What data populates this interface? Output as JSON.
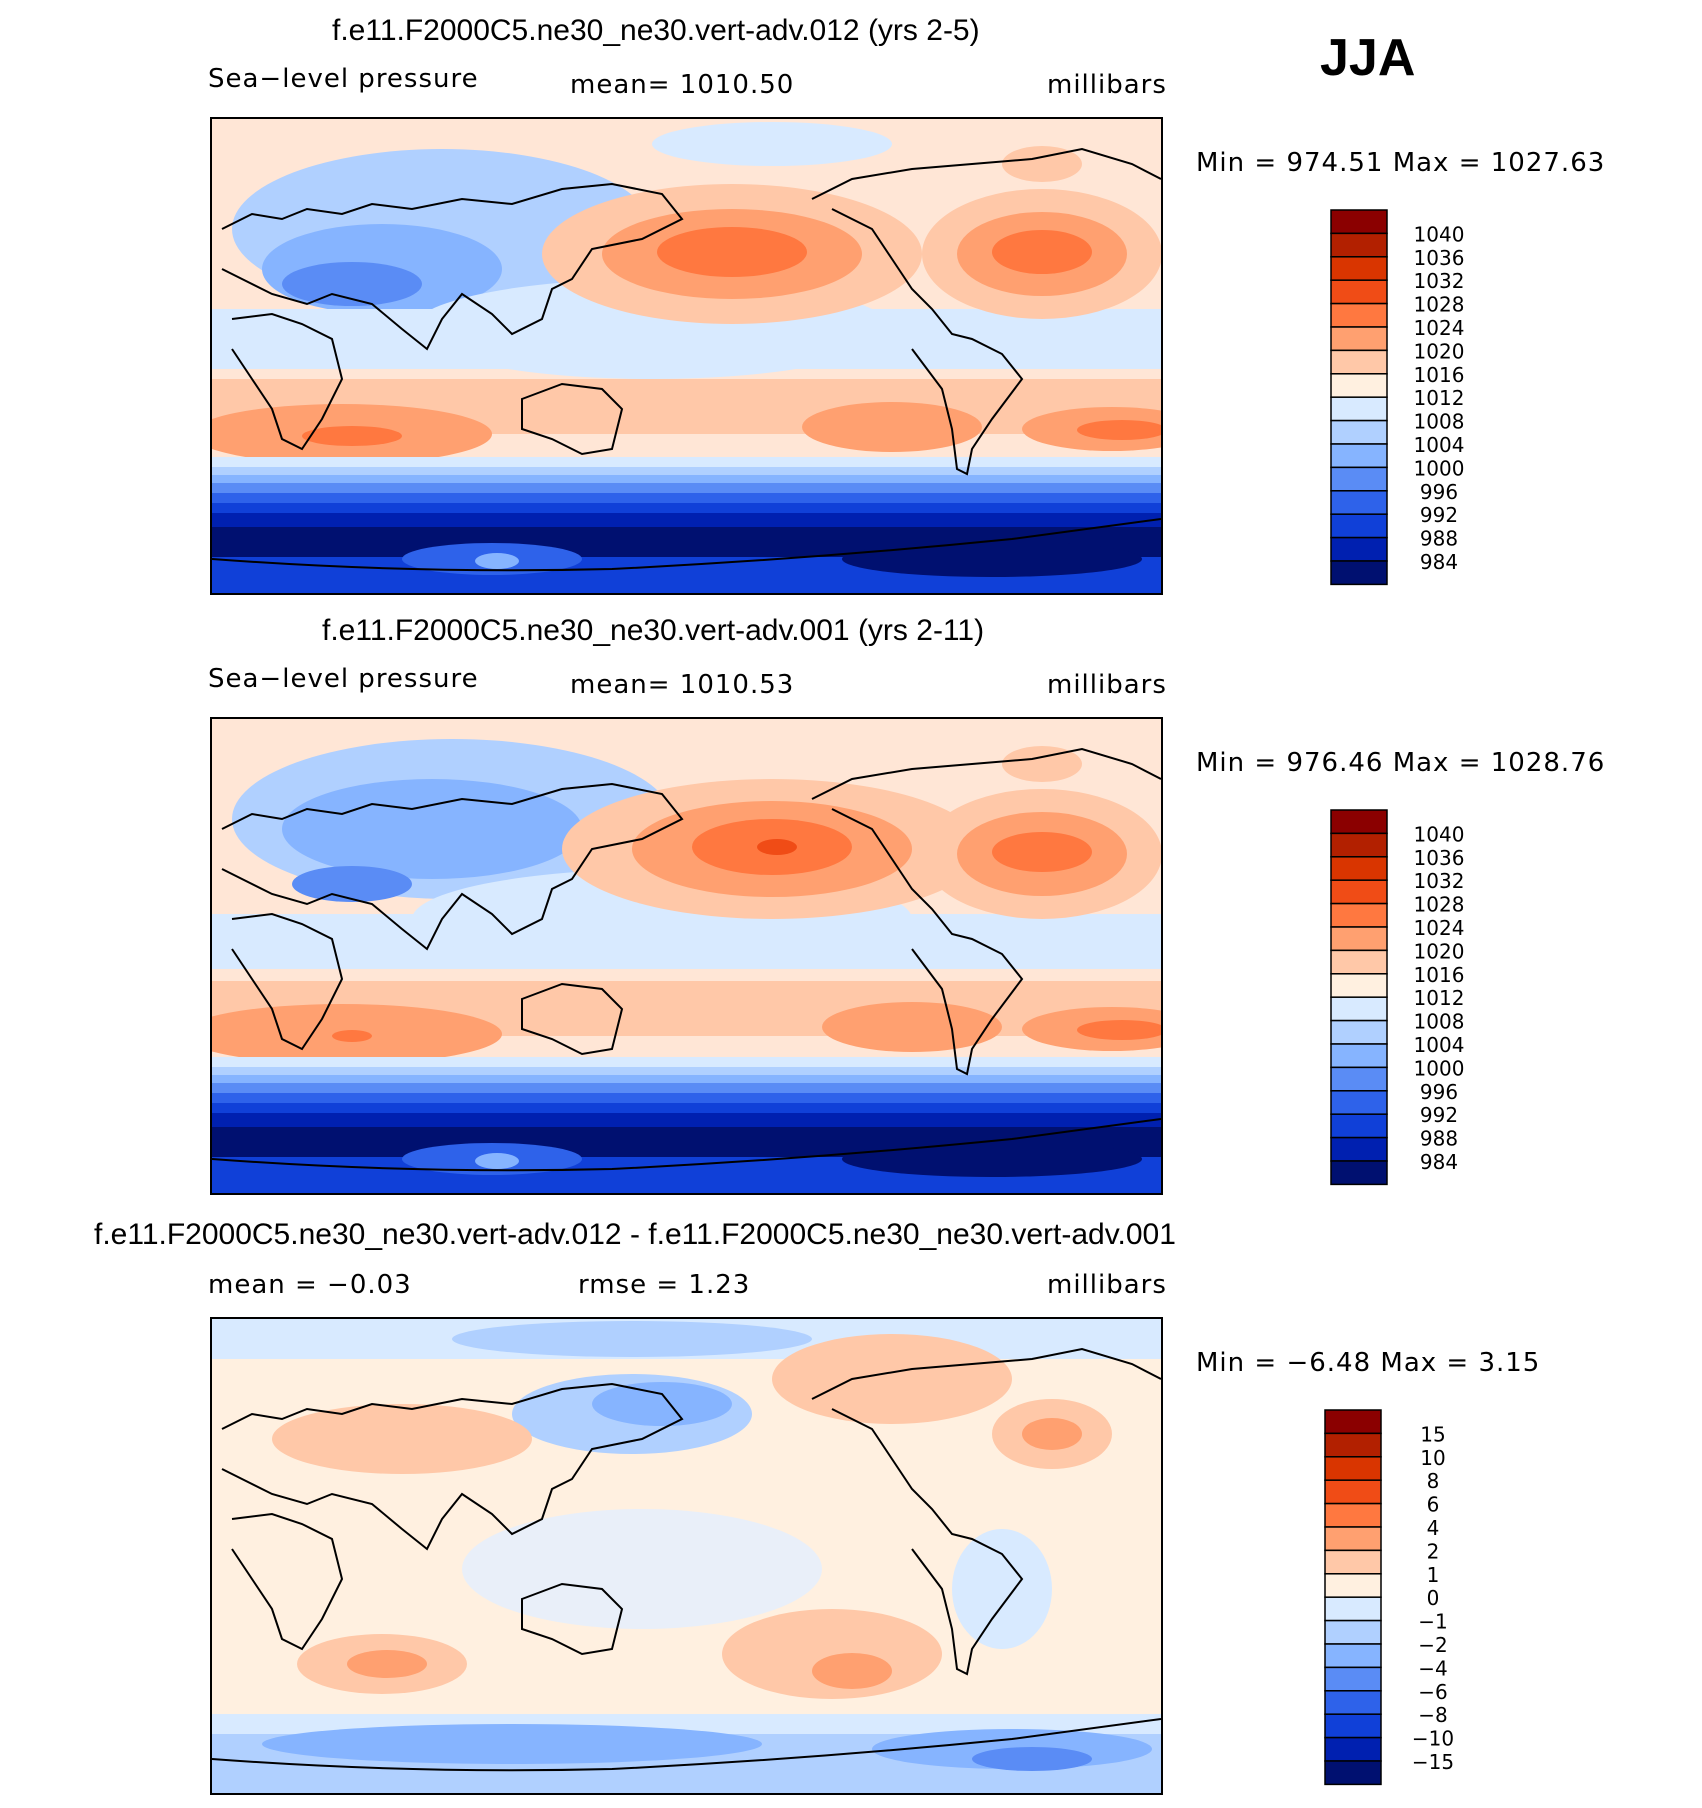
{
  "season": "JJA",
  "panels": [
    {
      "title": "f.e11.F2000C5.ne30_ne30.vert-adv.012 (yrs 2-5)",
      "variable": "Sea−level pressure",
      "stat_left": "mean=  1010.50",
      "stat_right": "",
      "units": "millibars",
      "minmax": "Min  =  974.51  Max  =  1027.63",
      "min": 974.51,
      "max": 1027.63,
      "colorbar": {
        "labels": [
          "1040",
          "1036",
          "1032",
          "1028",
          "1024",
          "1020",
          "1016",
          "1012",
          "1008",
          "1004",
          "1000",
          "996",
          "992",
          "988",
          "984"
        ],
        "colors": [
          "#8b0000",
          "#b22000",
          "#d93500",
          "#f04c16",
          "#ff7840",
          "#ffa070",
          "#ffc8a8",
          "#fff0e0",
          "#d8eaff",
          "#b0d0ff",
          "#86b4ff",
          "#5a8cf5",
          "#2e62ea",
          "#1040d8",
          "#0020b0",
          "#001070"
        ]
      }
    },
    {
      "title": "f.e11.F2000C5.ne30_ne30.vert-adv.001 (yrs 2-11)",
      "variable": "Sea−level pressure",
      "stat_left": "mean=  1010.53",
      "stat_right": "",
      "units": "millibars",
      "minmax": "Min  =  976.46  Max  =  1028.76",
      "min": 976.46,
      "max": 1028.76,
      "colorbar": {
        "labels": [
          "1040",
          "1036",
          "1032",
          "1028",
          "1024",
          "1020",
          "1016",
          "1012",
          "1008",
          "1004",
          "1000",
          "996",
          "992",
          "988",
          "984"
        ],
        "colors": [
          "#8b0000",
          "#b22000",
          "#d93500",
          "#f04c16",
          "#ff7840",
          "#ffa070",
          "#ffc8a8",
          "#fff0e0",
          "#d8eaff",
          "#b0d0ff",
          "#86b4ff",
          "#5a8cf5",
          "#2e62ea",
          "#1040d8",
          "#0020b0",
          "#001070"
        ]
      }
    },
    {
      "title": "f.e11.F2000C5.ne30_ne30.vert-adv.012 - f.e11.F2000C5.ne30_ne30.vert-adv.001",
      "variable": "",
      "stat_left": "mean  =    −0.03",
      "stat_right": "rmse  =      1.23",
      "units": "millibars",
      "minmax": "Min  =    −6.48  Max  =      3.15",
      "min": -6.48,
      "max": 3.15,
      "colorbar": {
        "labels": [
          "15",
          "10",
          "8",
          "6",
          "4",
          "2",
          "1",
          "0",
          "−1",
          "−2",
          "−4",
          "−6",
          "−8",
          "−10",
          "−15"
        ],
        "colors": [
          "#8b0000",
          "#b22000",
          "#d93500",
          "#f04c16",
          "#ff7840",
          "#ffa070",
          "#ffc8a8",
          "#fff0e0",
          "#d8eaff",
          "#b0d0ff",
          "#86b4ff",
          "#5a8cf5",
          "#2e62ea",
          "#1040d8",
          "#0020b0",
          "#001070"
        ]
      }
    }
  ],
  "chart_data": [
    {
      "type": "heatmap",
      "title": "f.e11.F2000C5.ne30_ne30.vert-adv.012 (yrs 2-5)",
      "variable": "Sea-level pressure",
      "units": "millibars",
      "mean": 1010.5,
      "min": 974.51,
      "max": 1027.63,
      "contour_levels": [
        984,
        988,
        992,
        996,
        1000,
        1004,
        1008,
        1012,
        1016,
        1020,
        1024,
        1028,
        1032,
        1036,
        1040
      ]
    },
    {
      "type": "heatmap",
      "title": "f.e11.F2000C5.ne30_ne30.vert-adv.001 (yrs 2-11)",
      "variable": "Sea-level pressure",
      "units": "millibars",
      "mean": 1010.53,
      "min": 976.46,
      "max": 1028.76,
      "contour_levels": [
        984,
        988,
        992,
        996,
        1000,
        1004,
        1008,
        1012,
        1016,
        1020,
        1024,
        1028,
        1032,
        1036,
        1040
      ]
    },
    {
      "type": "heatmap",
      "title": "f.e11.F2000C5.ne30_ne30.vert-adv.012 - f.e11.F2000C5.ne30_ne30.vert-adv.001",
      "units": "millibars",
      "mean": -0.03,
      "rmse": 1.23,
      "min": -6.48,
      "max": 3.15,
      "contour_levels": [
        -15,
        -10,
        -8,
        -6,
        -4,
        -2,
        -1,
        0,
        1,
        2,
        4,
        6,
        8,
        10,
        15
      ]
    }
  ]
}
